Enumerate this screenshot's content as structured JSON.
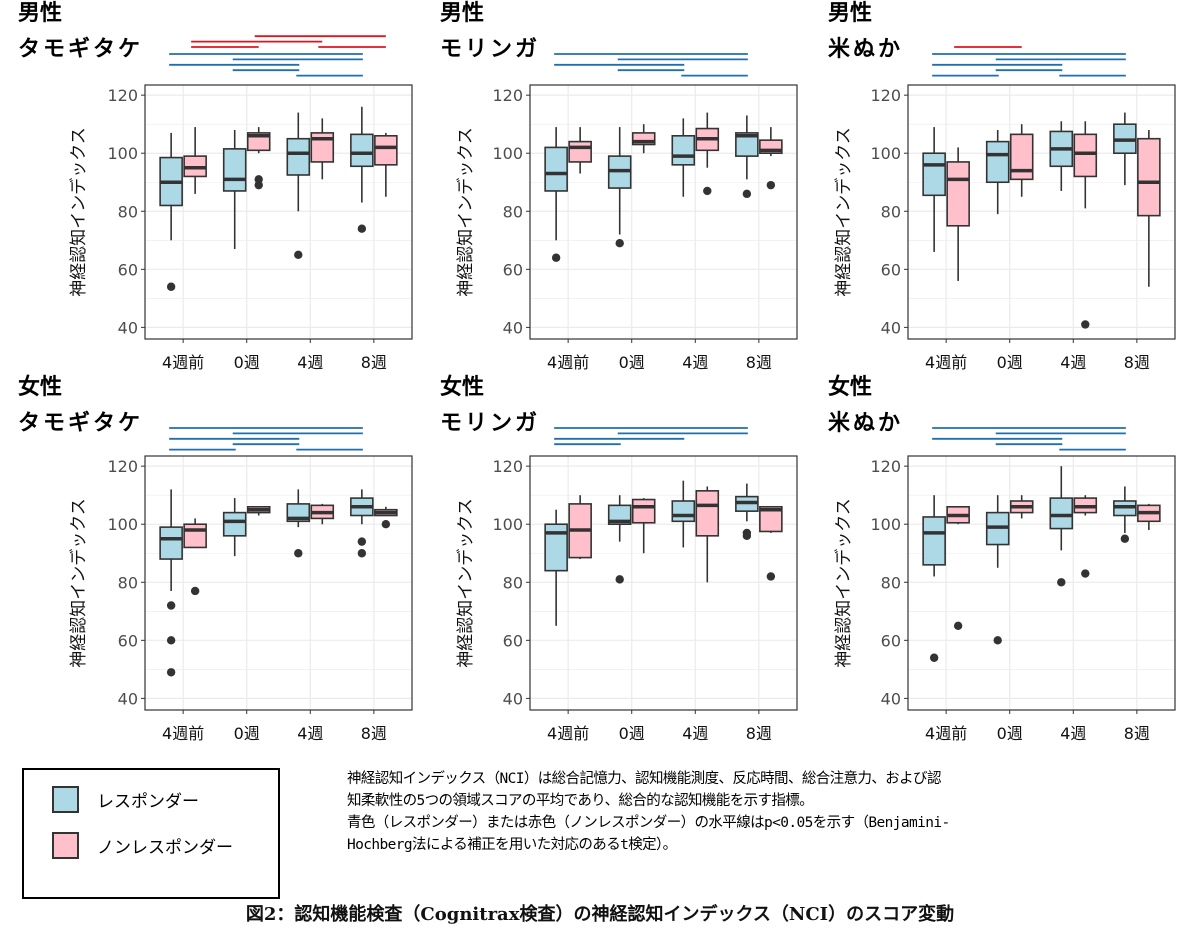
{
  "colors": {
    "responder_fill": "#add8e6",
    "nonresponder_fill": "#ffc0cb",
    "responder_sig_line": "#1f6fae",
    "nonresponder_sig_line": "#e0141e",
    "box_outline": "#333333",
    "grid": "#ebebeb"
  },
  "legend": {
    "items": [
      {
        "label": "レスポンダー",
        "color": "#add8e6"
      },
      {
        "label": "ノンレスポンダー",
        "color": "#ffc0cb"
      }
    ]
  },
  "notes": {
    "lines": [
      "神経認知インデックス（NCI）は総合記憶力、認知機能測度、反応時間、総合注意力、および認",
      "知柔軟性の5つの領域スコアの平均であり、総合的な認知機能を示す指標。",
      "青色（レスポンダー）または赤色（ノンレスポンダー）の水平線はp<0.05を示す（Benjamini-",
      "Hochberg法による補正を用いた対応のあるt検定）。"
    ]
  },
  "caption": "図2：認知機能検査（Cognitrax検査）の神経認知インデックス（NCI）のスコア変動",
  "chart_data": [
    {
      "type": "boxplot",
      "title_lines": [
        "男性",
        "タモギタケ"
      ],
      "ylabel": "神経認知インデックス",
      "categories": [
        "4週前",
        "0週",
        "4週",
        "8週"
      ],
      "ylim": [
        36,
        123.5
      ],
      "yticks": [
        40,
        60,
        80,
        100,
        120
      ],
      "grid": true,
      "series": [
        {
          "name": "レスポンダー",
          "boxes": [
            {
              "low": 70,
              "q1": 82,
              "median": 90,
              "q3": 98.5,
              "high": 107,
              "outliers": [
                54
              ]
            },
            {
              "low": 67,
              "q1": 87,
              "median": 91,
              "q3": 101.5,
              "high": 108,
              "outliers": []
            },
            {
              "low": 80,
              "q1": 92.5,
              "median": 100,
              "q3": 105,
              "high": 114,
              "outliers": [
                65
              ]
            },
            {
              "low": 83,
              "q1": 95.5,
              "median": 100,
              "q3": 106.5,
              "high": 116,
              "outliers": [
                74
              ]
            }
          ]
        },
        {
          "name": "ノンレスポンダー",
          "boxes": [
            {
              "low": 86,
              "q1": 92,
              "median": 95,
              "q3": 99,
              "high": 109,
              "outliers": []
            },
            {
              "low": 100,
              "q1": 101,
              "median": 106,
              "q3": 107,
              "high": 109,
              "outliers": [
                89,
                91
              ]
            },
            {
              "low": 91,
              "q1": 97,
              "median": 105,
              "q3": 107,
              "high": 112,
              "outliers": []
            },
            {
              "low": 85,
              "q1": 96,
              "median": 102,
              "q3": 106,
              "high": 107,
              "outliers": []
            }
          ]
        }
      ],
      "significance": {
        "nonresponder": [
          [
            1,
            3
          ],
          [
            0,
            2
          ],
          [
            0,
            1
          ],
          [
            2,
            3
          ]
        ],
        "responder": [
          [
            0,
            3
          ],
          [
            1,
            3
          ],
          [
            0,
            2
          ],
          [
            1,
            2
          ],
          [
            2,
            3
          ]
        ]
      }
    },
    {
      "type": "boxplot",
      "title_lines": [
        "男性",
        "モリンガ"
      ],
      "ylabel": "神経認知インデックス",
      "categories": [
        "4週前",
        "0週",
        "4週",
        "8週"
      ],
      "ylim": [
        36,
        123.5
      ],
      "yticks": [
        40,
        60,
        80,
        100,
        120
      ],
      "grid": true,
      "series": [
        {
          "name": "レスポンダー",
          "boxes": [
            {
              "low": 70,
              "q1": 87,
              "median": 93,
              "q3": 102,
              "high": 109,
              "outliers": [
                64
              ]
            },
            {
              "low": 72,
              "q1": 88,
              "median": 94,
              "q3": 99,
              "high": 109,
              "outliers": [
                69
              ]
            },
            {
              "low": 85,
              "q1": 96,
              "median": 99,
              "q3": 106,
              "high": 112,
              "outliers": []
            },
            {
              "low": 91,
              "q1": 99,
              "median": 106,
              "q3": 107,
              "high": 113,
              "outliers": [
                86
              ]
            }
          ]
        },
        {
          "name": "ノンレスポンダー",
          "boxes": [
            {
              "low": 93,
              "q1": 97,
              "median": 102,
              "q3": 104,
              "high": 109,
              "outliers": []
            },
            {
              "low": 100,
              "q1": 103,
              "median": 104,
              "q3": 107,
              "high": 110,
              "outliers": []
            },
            {
              "low": 95,
              "q1": 101,
              "median": 105,
              "q3": 108.5,
              "high": 114,
              "outliers": [
                87
              ]
            },
            {
              "low": 99,
              "q1": 100,
              "median": 101,
              "q3": 104.5,
              "high": 109,
              "outliers": [
                89
              ]
            }
          ]
        }
      ],
      "significance": {
        "nonresponder": [],
        "responder": [
          [
            0,
            3
          ],
          [
            1,
            3
          ],
          [
            0,
            2
          ],
          [
            1,
            2
          ],
          [
            2,
            3
          ]
        ]
      }
    },
    {
      "type": "boxplot",
      "title_lines": [
        "男性",
        "米ぬか"
      ],
      "ylabel": "神経認知インデックス",
      "categories": [
        "4週前",
        "0週",
        "4週",
        "8週"
      ],
      "ylim": [
        36,
        123.5
      ],
      "yticks": [
        40,
        60,
        80,
        100,
        120
      ],
      "grid": true,
      "series": [
        {
          "name": "レスポンダー",
          "boxes": [
            {
              "low": 66,
              "q1": 85.5,
              "median": 96,
              "q3": 100,
              "high": 109,
              "outliers": []
            },
            {
              "low": 79,
              "q1": 90,
              "median": 99.5,
              "q3": 104,
              "high": 108,
              "outliers": []
            },
            {
              "low": 87,
              "q1": 95.5,
              "median": 101.5,
              "q3": 107.5,
              "high": 111,
              "outliers": []
            },
            {
              "low": 89,
              "q1": 100,
              "median": 104.5,
              "q3": 110,
              "high": 114,
              "outliers": []
            }
          ]
        },
        {
          "name": "ノンレスポンダー",
          "boxes": [
            {
              "low": 56,
              "q1": 75,
              "median": 91,
              "q3": 97,
              "high": 102,
              "outliers": []
            },
            {
              "low": 85,
              "q1": 91,
              "median": 94,
              "q3": 106.5,
              "high": 110,
              "outliers": []
            },
            {
              "low": 81,
              "q1": 92,
              "median": 100,
              "q3": 106.5,
              "high": 111,
              "outliers": [
                41
              ]
            },
            {
              "low": 54,
              "q1": 78.5,
              "median": 90,
              "q3": 105,
              "high": 108,
              "outliers": []
            }
          ]
        }
      ],
      "significance": {
        "nonresponder": [
          [
            0,
            1
          ]
        ],
        "responder": [
          [
            0,
            3
          ],
          [
            1,
            3
          ],
          [
            0,
            2
          ],
          [
            1,
            2
          ],
          [
            0,
            1
          ],
          [
            2,
            3
          ]
        ]
      }
    },
    {
      "type": "boxplot",
      "title_lines": [
        "女性",
        "タモギタケ"
      ],
      "ylabel": "神経認知インデックス",
      "categories": [
        "4週前",
        "0週",
        "4週",
        "8週"
      ],
      "ylim": [
        36,
        123.5
      ],
      "yticks": [
        40,
        60,
        80,
        100,
        120
      ],
      "grid": true,
      "series": [
        {
          "name": "レスポンダー",
          "boxes": [
            {
              "low": 77,
              "q1": 88,
              "median": 95,
              "q3": 99,
              "high": 112,
              "outliers": [
                72,
                60,
                49
              ]
            },
            {
              "low": 89,
              "q1": 96,
              "median": 101,
              "q3": 104,
              "high": 109,
              "outliers": []
            },
            {
              "low": 99,
              "q1": 101,
              "median": 102,
              "q3": 107,
              "high": 112,
              "outliers": [
                90
              ]
            },
            {
              "low": 100,
              "q1": 103,
              "median": 106,
              "q3": 109,
              "high": 112,
              "outliers": [
                94,
                90
              ]
            }
          ]
        },
        {
          "name": "ノンレスポンダー",
          "boxes": [
            {
              "low": 92,
              "q1": 92,
              "median": 98,
              "q3": 100,
              "high": 102,
              "outliers": [
                77
              ]
            },
            {
              "low": 103,
              "q1": 104,
              "median": 105,
              "q3": 106,
              "high": 106,
              "outliers": []
            },
            {
              "low": 100,
              "q1": 102,
              "median": 104,
              "q3": 106.5,
              "high": 107,
              "outliers": []
            },
            {
              "low": 103,
              "q1": 103,
              "median": 104,
              "q3": 105,
              "high": 106,
              "outliers": [
                100
              ]
            }
          ]
        }
      ],
      "significance": {
        "nonresponder": [],
        "responder": [
          [
            0,
            3
          ],
          [
            1,
            3
          ],
          [
            0,
            2
          ],
          [
            1,
            2
          ],
          [
            0,
            1
          ],
          [
            2,
            3
          ]
        ]
      }
    },
    {
      "type": "boxplot",
      "title_lines": [
        "女性",
        "モリンガ"
      ],
      "ylabel": "神経認知インデックス",
      "categories": [
        "4週前",
        "0週",
        "4週",
        "8週"
      ],
      "ylim": [
        36,
        123.5
      ],
      "yticks": [
        40,
        60,
        80,
        100,
        120
      ],
      "grid": true,
      "series": [
        {
          "name": "レスポンダー",
          "boxes": [
            {
              "low": 65,
              "q1": 84,
              "median": 97,
              "q3": 100,
              "high": 105,
              "outliers": []
            },
            {
              "low": 94,
              "q1": 100,
              "median": 101,
              "q3": 106.5,
              "high": 110,
              "outliers": [
                81
              ]
            },
            {
              "low": 92,
              "q1": 101,
              "median": 103,
              "q3": 108,
              "high": 115,
              "outliers": []
            },
            {
              "low": 101,
              "q1": 104.5,
              "median": 107.5,
              "q3": 109.5,
              "high": 114,
              "outliers": [
                97,
                96
              ]
            }
          ]
        },
        {
          "name": "ノンレスポンダー",
          "boxes": [
            {
              "low": 88,
              "q1": 88.5,
              "median": 98,
              "q3": 107,
              "high": 110,
              "outliers": []
            },
            {
              "low": 90,
              "q1": 100.5,
              "median": 106,
              "q3": 108.5,
              "high": 109,
              "outliers": []
            },
            {
              "low": 80,
              "q1": 96,
              "median": 106.5,
              "q3": 111.5,
              "high": 113,
              "outliers": []
            },
            {
              "low": 97,
              "q1": 97.5,
              "median": 105,
              "q3": 106,
              "high": 106,
              "outliers": [
                82
              ]
            }
          ]
        }
      ],
      "significance": {
        "nonresponder": [],
        "responder": [
          [
            0,
            3
          ],
          [
            1,
            3
          ],
          [
            0,
            2
          ],
          [
            0,
            1
          ]
        ]
      }
    },
    {
      "type": "boxplot",
      "title_lines": [
        "女性",
        "米ぬか"
      ],
      "ylabel": "神経認知インデックス",
      "categories": [
        "4週前",
        "0週",
        "4週",
        "8週"
      ],
      "ylim": [
        36,
        123.5
      ],
      "yticks": [
        40,
        60,
        80,
        100,
        120
      ],
      "grid": true,
      "series": [
        {
          "name": "レスポンダー",
          "boxes": [
            {
              "low": 82,
              "q1": 86,
              "median": 97,
              "q3": 102.5,
              "high": 110,
              "outliers": [
                54
              ]
            },
            {
              "low": 85,
              "q1": 93,
              "median": 99,
              "q3": 104,
              "high": 110,
              "outliers": [
                60
              ]
            },
            {
              "low": 91,
              "q1": 98.5,
              "median": 103,
              "q3": 109,
              "high": 120,
              "outliers": [
                80
              ]
            },
            {
              "low": 97,
              "q1": 103,
              "median": 106,
              "q3": 108,
              "high": 113,
              "outliers": [
                95
              ]
            }
          ]
        },
        {
          "name": "ノンレスポンダー",
          "boxes": [
            {
              "low": 100,
              "q1": 100.5,
              "median": 103,
              "q3": 106,
              "high": 106,
              "outliers": [
                65
              ]
            },
            {
              "low": 102,
              "q1": 104,
              "median": 106,
              "q3": 108,
              "high": 110,
              "outliers": []
            },
            {
              "low": 103,
              "q1": 104,
              "median": 106,
              "q3": 109,
              "high": 110,
              "outliers": [
                83
              ]
            },
            {
              "low": 98,
              "q1": 101,
              "median": 104,
              "q3": 106.5,
              "high": 107,
              "outliers": []
            }
          ]
        }
      ],
      "significance": {
        "nonresponder": [],
        "responder": [
          [
            0,
            3
          ],
          [
            1,
            3
          ],
          [
            0,
            2
          ],
          [
            1,
            2
          ],
          [
            2,
            3
          ]
        ]
      }
    }
  ]
}
